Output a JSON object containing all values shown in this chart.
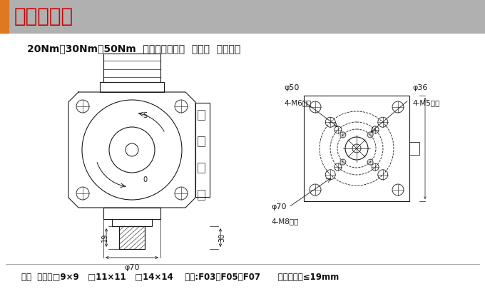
{
  "title_bar_text": "安装示意图",
  "title_bar_bg": "#b8b8b8",
  "title_bar_accent": "#E07820",
  "title_bar_text_color": "#cc0000",
  "subtitle": "20Nm、30Nm、50Nm  防爆电动执行器  直装式  外形尺寸",
  "footer": "参数  四方：□9×9   □11×11   □14×14    法兰:F03、F05、F07      阀杆：高度≤19mm",
  "bg_color": "#ffffff",
  "drawing_color": "#1a1a1a"
}
